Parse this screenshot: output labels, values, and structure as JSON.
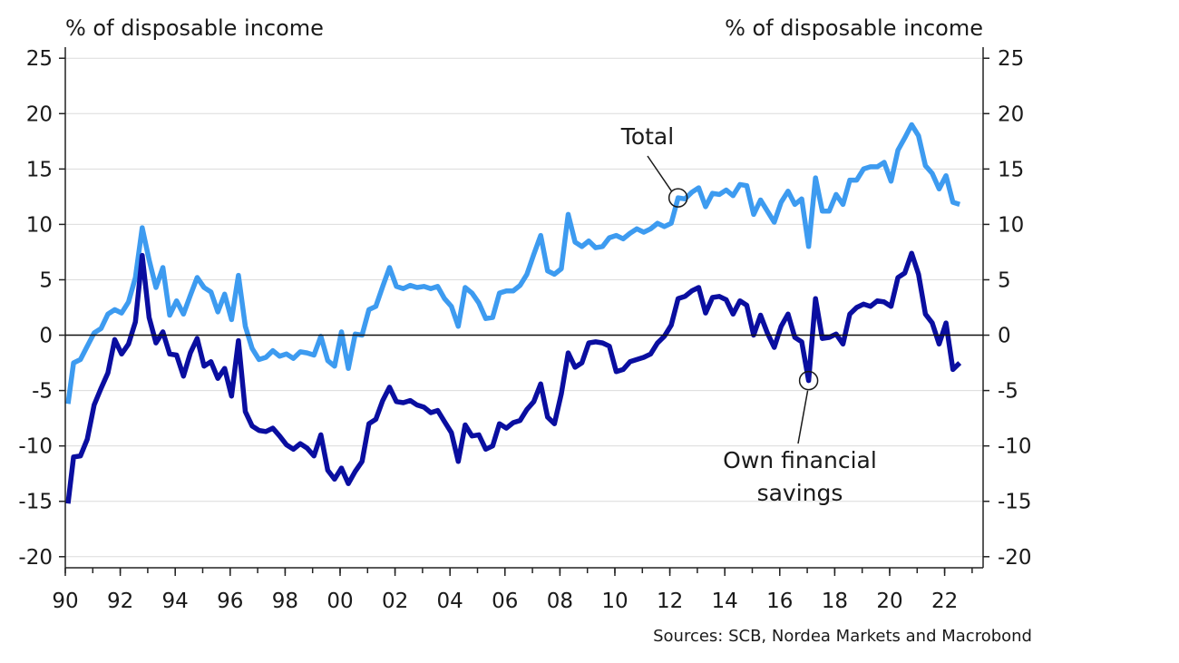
{
  "chart_data": {
    "type": "line",
    "y_unit_left": "% of disposable income",
    "y_unit_right": "% of disposable income",
    "source": "Sources: SCB, Nordea Markets and Macrobond",
    "x_range": [
      1990,
      2023.4
    ],
    "y_range": [
      -21,
      26
    ],
    "y_ticks": [
      25,
      20,
      15,
      10,
      5,
      0,
      -5,
      -10,
      -15,
      -20
    ],
    "y_tick_labels": [
      "25",
      "20",
      "15",
      "10",
      "5",
      "0",
      "-5",
      "-10",
      "-15",
      "-20"
    ],
    "x_ticks": [
      1990,
      1992,
      1994,
      1996,
      1998,
      2000,
      2002,
      2004,
      2006,
      2008,
      2010,
      2012,
      2014,
      2016,
      2018,
      2020,
      2022
    ],
    "x_tick_labels": [
      "90",
      "92",
      "94",
      "96",
      "98",
      "00",
      "02",
      "04",
      "06",
      "08",
      "10",
      "12",
      "14",
      "16",
      "18",
      "20",
      "22"
    ],
    "grid": true,
    "annotations": {
      "total": "Total",
      "own_line1": "Own financial",
      "own_line2": "savings"
    },
    "series": [
      {
        "key": "total",
        "color": "#3d9bf0",
        "points": [
          [
            1990.1,
            -6.2
          ],
          [
            1990.3,
            -2.5
          ],
          [
            1990.55,
            -2.2
          ],
          [
            1990.8,
            -1.0
          ],
          [
            1991.05,
            0.2
          ],
          [
            1991.3,
            0.6
          ],
          [
            1991.55,
            1.9
          ],
          [
            1991.8,
            2.3
          ],
          [
            1992.05,
            2.0
          ],
          [
            1992.3,
            3.0
          ],
          [
            1992.55,
            5.2
          ],
          [
            1992.8,
            9.7
          ],
          [
            1993.05,
            6.8
          ],
          [
            1993.3,
            4.3
          ],
          [
            1993.55,
            6.1
          ],
          [
            1993.8,
            1.8
          ],
          [
            1994.05,
            3.1
          ],
          [
            1994.3,
            1.9
          ],
          [
            1994.55,
            3.6
          ],
          [
            1994.8,
            5.2
          ],
          [
            1995.05,
            4.3
          ],
          [
            1995.3,
            3.9
          ],
          [
            1995.55,
            2.1
          ],
          [
            1995.8,
            3.7
          ],
          [
            1996.05,
            1.4
          ],
          [
            1996.3,
            5.4
          ],
          [
            1996.55,
            0.8
          ],
          [
            1996.8,
            -1.2
          ],
          [
            1997.05,
            -2.2
          ],
          [
            1997.3,
            -2.0
          ],
          [
            1997.55,
            -1.4
          ],
          [
            1997.8,
            -1.9
          ],
          [
            1998.05,
            -1.7
          ],
          [
            1998.3,
            -2.1
          ],
          [
            1998.55,
            -1.5
          ],
          [
            1998.8,
            -1.6
          ],
          [
            1999.05,
            -1.8
          ],
          [
            1999.3,
            -0.1
          ],
          [
            1999.55,
            -2.3
          ],
          [
            1999.8,
            -2.8
          ],
          [
            2000.05,
            0.3
          ],
          [
            2000.3,
            -3.0
          ],
          [
            2000.55,
            0.1
          ],
          [
            2000.8,
            0.0
          ],
          [
            2001.05,
            2.3
          ],
          [
            2001.3,
            2.6
          ],
          [
            2001.55,
            4.4
          ],
          [
            2001.8,
            6.1
          ],
          [
            2002.05,
            4.4
          ],
          [
            2002.3,
            4.2
          ],
          [
            2002.55,
            4.5
          ],
          [
            2002.8,
            4.3
          ],
          [
            2003.05,
            4.4
          ],
          [
            2003.3,
            4.2
          ],
          [
            2003.55,
            4.4
          ],
          [
            2003.8,
            3.3
          ],
          [
            2004.05,
            2.6
          ],
          [
            2004.3,
            0.8
          ],
          [
            2004.55,
            4.3
          ],
          [
            2004.8,
            3.8
          ],
          [
            2005.05,
            2.9
          ],
          [
            2005.3,
            1.5
          ],
          [
            2005.55,
            1.6
          ],
          [
            2005.8,
            3.8
          ],
          [
            2006.05,
            4.0
          ],
          [
            2006.3,
            4.0
          ],
          [
            2006.55,
            4.5
          ],
          [
            2006.8,
            5.5
          ],
          [
            2007.05,
            7.3
          ],
          [
            2007.3,
            9.0
          ],
          [
            2007.55,
            5.8
          ],
          [
            2007.8,
            5.5
          ],
          [
            2008.05,
            6.0
          ],
          [
            2008.3,
            10.9
          ],
          [
            2008.55,
            8.4
          ],
          [
            2008.8,
            8.0
          ],
          [
            2009.05,
            8.5
          ],
          [
            2009.3,
            7.9
          ],
          [
            2009.55,
            8.0
          ],
          [
            2009.8,
            8.8
          ],
          [
            2010.05,
            9.0
          ],
          [
            2010.3,
            8.7
          ],
          [
            2010.55,
            9.2
          ],
          [
            2010.8,
            9.6
          ],
          [
            2011.05,
            9.3
          ],
          [
            2011.3,
            9.6
          ],
          [
            2011.55,
            10.1
          ],
          [
            2011.8,
            9.8
          ],
          [
            2012.05,
            10.1
          ],
          [
            2012.3,
            12.4
          ],
          [
            2012.55,
            12.3
          ],
          [
            2012.8,
            12.9
          ],
          [
            2013.05,
            13.3
          ],
          [
            2013.3,
            11.6
          ],
          [
            2013.55,
            12.8
          ],
          [
            2013.8,
            12.7
          ],
          [
            2014.05,
            13.1
          ],
          [
            2014.3,
            12.6
          ],
          [
            2014.55,
            13.6
          ],
          [
            2014.8,
            13.5
          ],
          [
            2015.05,
            10.9
          ],
          [
            2015.3,
            12.2
          ],
          [
            2015.55,
            11.2
          ],
          [
            2015.8,
            10.2
          ],
          [
            2016.05,
            12.0
          ],
          [
            2016.3,
            13.0
          ],
          [
            2016.55,
            11.8
          ],
          [
            2016.8,
            12.3
          ],
          [
            2017.05,
            8.0
          ],
          [
            2017.3,
            14.2
          ],
          [
            2017.55,
            11.2
          ],
          [
            2017.8,
            11.2
          ],
          [
            2018.05,
            12.7
          ],
          [
            2018.3,
            11.8
          ],
          [
            2018.55,
            14.0
          ],
          [
            2018.8,
            14.0
          ],
          [
            2019.05,
            15.0
          ],
          [
            2019.3,
            15.2
          ],
          [
            2019.55,
            15.2
          ],
          [
            2019.8,
            15.6
          ],
          [
            2020.05,
            13.9
          ],
          [
            2020.3,
            16.7
          ],
          [
            2020.55,
            17.8
          ],
          [
            2020.8,
            19.0
          ],
          [
            2021.05,
            18.0
          ],
          [
            2021.3,
            15.3
          ],
          [
            2021.55,
            14.6
          ],
          [
            2021.8,
            13.2
          ],
          [
            2022.05,
            14.4
          ],
          [
            2022.3,
            12.0
          ],
          [
            2022.55,
            11.8
          ]
        ]
      },
      {
        "key": "own",
        "color": "#0a0ea0",
        "points": [
          [
            1990.1,
            -15.2
          ],
          [
            1990.3,
            -11.0
          ],
          [
            1990.55,
            -10.9
          ],
          [
            1990.8,
            -9.4
          ],
          [
            1991.05,
            -6.3
          ],
          [
            1991.3,
            -4.8
          ],
          [
            1991.55,
            -3.4
          ],
          [
            1991.8,
            -0.4
          ],
          [
            1992.05,
            -1.7
          ],
          [
            1992.3,
            -0.8
          ],
          [
            1992.55,
            1.2
          ],
          [
            1992.8,
            7.2
          ],
          [
            1993.05,
            1.6
          ],
          [
            1993.3,
            -0.7
          ],
          [
            1993.55,
            0.3
          ],
          [
            1993.8,
            -1.7
          ],
          [
            1994.05,
            -1.8
          ],
          [
            1994.3,
            -3.7
          ],
          [
            1994.55,
            -1.6
          ],
          [
            1994.8,
            -0.3
          ],
          [
            1995.05,
            -2.8
          ],
          [
            1995.3,
            -2.4
          ],
          [
            1995.55,
            -3.9
          ],
          [
            1995.8,
            -3.0
          ],
          [
            1996.05,
            -5.5
          ],
          [
            1996.3,
            -0.5
          ],
          [
            1996.55,
            -6.9
          ],
          [
            1996.8,
            -8.2
          ],
          [
            1997.05,
            -8.6
          ],
          [
            1997.3,
            -8.7
          ],
          [
            1997.55,
            -8.4
          ],
          [
            1997.8,
            -9.1
          ],
          [
            1998.05,
            -9.9
          ],
          [
            1998.3,
            -10.3
          ],
          [
            1998.55,
            -9.8
          ],
          [
            1998.8,
            -10.2
          ],
          [
            1999.05,
            -10.9
          ],
          [
            1999.3,
            -9.0
          ],
          [
            1999.55,
            -12.2
          ],
          [
            1999.8,
            -13.0
          ],
          [
            2000.05,
            -12.0
          ],
          [
            2000.3,
            -13.4
          ],
          [
            2000.55,
            -12.3
          ],
          [
            2000.8,
            -11.4
          ],
          [
            2001.05,
            -8.0
          ],
          [
            2001.3,
            -7.6
          ],
          [
            2001.55,
            -5.9
          ],
          [
            2001.8,
            -4.7
          ],
          [
            2002.05,
            -6.0
          ],
          [
            2002.3,
            -6.1
          ],
          [
            2002.55,
            -5.9
          ],
          [
            2002.8,
            -6.3
          ],
          [
            2003.05,
            -6.5
          ],
          [
            2003.3,
            -7.0
          ],
          [
            2003.55,
            -6.8
          ],
          [
            2003.8,
            -7.8
          ],
          [
            2004.05,
            -8.8
          ],
          [
            2004.3,
            -11.4
          ],
          [
            2004.55,
            -8.1
          ],
          [
            2004.8,
            -9.1
          ],
          [
            2005.05,
            -9.0
          ],
          [
            2005.3,
            -10.3
          ],
          [
            2005.55,
            -10.0
          ],
          [
            2005.8,
            -8.0
          ],
          [
            2006.05,
            -8.4
          ],
          [
            2006.3,
            -7.9
          ],
          [
            2006.55,
            -7.7
          ],
          [
            2006.8,
            -6.7
          ],
          [
            2007.05,
            -6.0
          ],
          [
            2007.3,
            -4.4
          ],
          [
            2007.55,
            -7.4
          ],
          [
            2007.8,
            -8.0
          ],
          [
            2008.05,
            -5.3
          ],
          [
            2008.3,
            -1.6
          ],
          [
            2008.55,
            -2.9
          ],
          [
            2008.8,
            -2.5
          ],
          [
            2009.05,
            -0.7
          ],
          [
            2009.3,
            -0.6
          ],
          [
            2009.55,
            -0.7
          ],
          [
            2009.8,
            -1.0
          ],
          [
            2010.05,
            -3.3
          ],
          [
            2010.3,
            -3.1
          ],
          [
            2010.55,
            -2.4
          ],
          [
            2010.8,
            -2.2
          ],
          [
            2011.05,
            -2.0
          ],
          [
            2011.3,
            -1.7
          ],
          [
            2011.55,
            -0.7
          ],
          [
            2011.8,
            -0.1
          ],
          [
            2012.05,
            0.9
          ],
          [
            2012.3,
            3.3
          ],
          [
            2012.55,
            3.5
          ],
          [
            2012.8,
            4.0
          ],
          [
            2013.05,
            4.3
          ],
          [
            2013.3,
            2.0
          ],
          [
            2013.55,
            3.4
          ],
          [
            2013.8,
            3.5
          ],
          [
            2014.05,
            3.2
          ],
          [
            2014.3,
            1.9
          ],
          [
            2014.55,
            3.1
          ],
          [
            2014.8,
            2.7
          ],
          [
            2015.05,
            0.0
          ],
          [
            2015.3,
            1.8
          ],
          [
            2015.55,
            0.2
          ],
          [
            2015.8,
            -1.1
          ],
          [
            2016.05,
            0.8
          ],
          [
            2016.3,
            1.9
          ],
          [
            2016.55,
            -0.2
          ],
          [
            2016.8,
            -0.6
          ],
          [
            2017.05,
            -4.1
          ],
          [
            2017.3,
            3.3
          ],
          [
            2017.55,
            -0.3
          ],
          [
            2017.8,
            -0.2
          ],
          [
            2018.05,
            0.1
          ],
          [
            2018.3,
            -0.8
          ],
          [
            2018.55,
            1.9
          ],
          [
            2018.8,
            2.5
          ],
          [
            2019.05,
            2.8
          ],
          [
            2019.3,
            2.6
          ],
          [
            2019.55,
            3.1
          ],
          [
            2019.8,
            3.0
          ],
          [
            2020.05,
            2.6
          ],
          [
            2020.3,
            5.2
          ],
          [
            2020.55,
            5.6
          ],
          [
            2020.8,
            7.4
          ],
          [
            2021.05,
            5.5
          ],
          [
            2021.3,
            1.9
          ],
          [
            2021.55,
            1.1
          ],
          [
            2021.8,
            -0.8
          ],
          [
            2022.05,
            1.1
          ],
          [
            2022.3,
            -3.1
          ],
          [
            2022.55,
            -2.5
          ]
        ]
      }
    ]
  }
}
